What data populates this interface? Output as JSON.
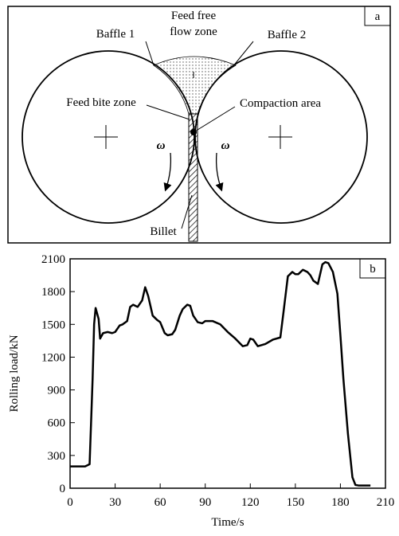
{
  "diagram": {
    "panel_label": "a",
    "feed_zone": [
      "Feed free",
      "flow zone"
    ],
    "baffle_left": "Baffle 1",
    "baffle_right": "Baffle  2",
    "feed_bite": "Feed bite zone",
    "compaction": "Compaction area",
    "omega_left": "ω",
    "omega_right": "ω",
    "billet": "Billet"
  },
  "chart_data": {
    "type": "line",
    "panel_label": "b",
    "x_label": "Time/s",
    "y_label": "Rolling load/kN",
    "x": [
      0,
      10,
      13,
      15,
      16,
      17,
      19,
      20,
      22,
      25,
      28,
      30,
      33,
      35,
      38,
      40,
      42,
      45,
      48,
      50,
      52,
      55,
      58,
      60,
      63,
      65,
      68,
      70,
      73,
      75,
      78,
      80,
      82,
      85,
      88,
      90,
      95,
      100,
      105,
      110,
      115,
      118,
      120,
      122,
      125,
      130,
      135,
      140,
      142,
      145,
      148,
      150,
      152,
      155,
      158,
      160,
      162,
      165,
      168,
      170,
      172,
      175,
      178,
      180,
      182,
      185,
      188,
      190,
      192,
      195,
      200
    ],
    "series": [
      {
        "color": "#000000",
        "values": [
          200,
          200,
          220,
          1000,
          1500,
          1650,
          1550,
          1370,
          1420,
          1430,
          1420,
          1430,
          1490,
          1500,
          1530,
          1660,
          1680,
          1660,
          1720,
          1840,
          1760,
          1580,
          1540,
          1520,
          1420,
          1400,
          1410,
          1450,
          1580,
          1640,
          1680,
          1670,
          1580,
          1520,
          1510,
          1530,
          1530,
          1500,
          1430,
          1370,
          1300,
          1310,
          1370,
          1360,
          1300,
          1320,
          1360,
          1380,
          1600,
          1940,
          1980,
          1960,
          1960,
          2000,
          1980,
          1950,
          1900,
          1870,
          2050,
          2070,
          2060,
          1980,
          1780,
          1400,
          1000,
          500,
          100,
          30,
          25,
          25,
          25
        ]
      }
    ],
    "xlim": [
      0,
      210
    ],
    "xticks": [
      0,
      30,
      60,
      90,
      120,
      150,
      180,
      210
    ],
    "ylim": [
      0,
      2100
    ],
    "yticks": [
      0,
      300,
      600,
      900,
      1200,
      1500,
      1800,
      2100
    ]
  }
}
